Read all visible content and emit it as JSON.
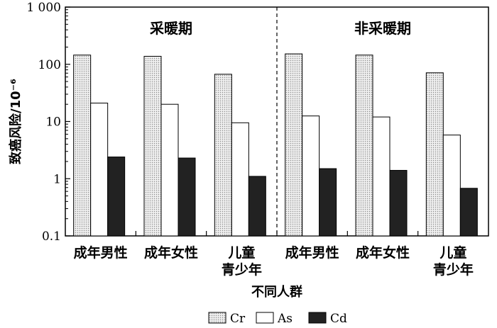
{
  "chart_data": {
    "type": "bar",
    "yscale": "log",
    "ylim": [
      0.1,
      1000
    ],
    "yticks": [
      {
        "value": 1000,
        "label": "1 000"
      },
      {
        "value": 100,
        "label": "100"
      },
      {
        "value": 10,
        "label": "10"
      },
      {
        "value": 1,
        "label": "1"
      },
      {
        "value": 0.1,
        "label": "0.1"
      }
    ],
    "ylabel": "致癌风险/10⁻⁶",
    "xlabel": "不同人群",
    "groups": [
      {
        "period": "采暖期",
        "categories": [
          [
            "成年男性"
          ],
          [
            "成年女性"
          ],
          [
            "儿童",
            "青少年"
          ]
        ]
      },
      {
        "period": "非采暖期",
        "categories": [
          [
            "成年男性"
          ],
          [
            "成年女性"
          ],
          [
            "儿童",
            "青少年"
          ]
        ]
      }
    ],
    "series": [
      {
        "name": "Cr",
        "values": [
          145,
          138,
          67,
          152,
          145,
          71
        ],
        "color": "#e6e6e6",
        "pattern": "dotted"
      },
      {
        "name": "As",
        "values": [
          21,
          20,
          9.5,
          12.5,
          12,
          5.8
        ],
        "color": "#ffffff"
      },
      {
        "name": "Cd",
        "values": [
          2.4,
          2.3,
          1.1,
          1.5,
          1.4,
          0.68
        ],
        "color": "#222222"
      }
    ],
    "legend_position": "bottom-center",
    "grid": false
  }
}
